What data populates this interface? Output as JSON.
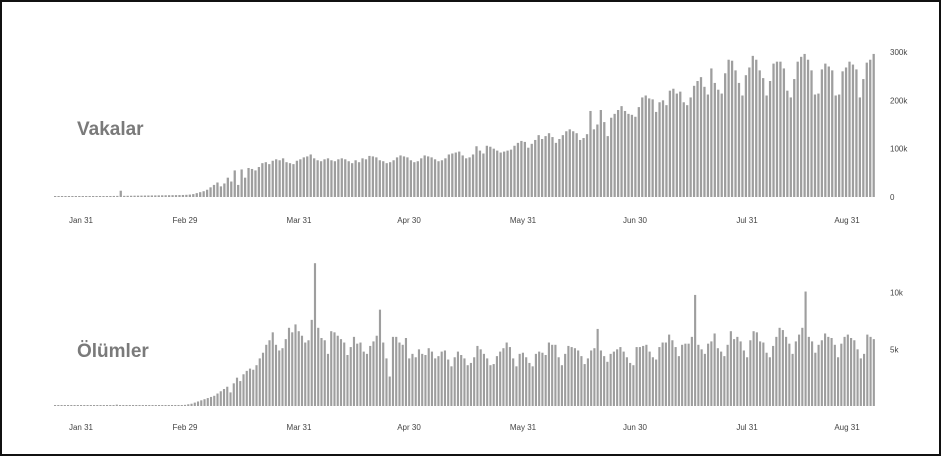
{
  "colors": {
    "bar": "#9e9e9e",
    "text": "#444444",
    "title": "#7a7a7a",
    "frame": "#111111"
  },
  "chart_data": [
    {
      "type": "bar",
      "title": "Vakalar",
      "xlabel": "",
      "ylabel": "",
      "x_range": [
        "Jan 31",
        "Sep 6"
      ],
      "x_ticks": [
        "Jan 31",
        "Feb 29",
        "Mar 31",
        "Apr 30",
        "May 31",
        "Jun 30",
        "Jul 31",
        "Aug 31"
      ],
      "y_ticks": [
        "0",
        "100k",
        "200k",
        "300k"
      ],
      "y_tick_values": [
        0,
        100000,
        200000,
        300000
      ],
      "ylim": [
        0,
        300000
      ],
      "grid": false,
      "daily_values": [
        500,
        600,
        700,
        800,
        900,
        1000,
        1100,
        1200,
        1300,
        1400,
        1500,
        1600,
        1700,
        1800,
        1900,
        2000,
        2100,
        2200,
        2300,
        13000,
        2400,
        2500,
        2600,
        2700,
        2800,
        2900,
        3000,
        3100,
        3200,
        3300,
        3400,
        3500,
        3600,
        3700,
        3800,
        3900,
        4000,
        4200,
        4500,
        5000,
        6000,
        8000,
        10000,
        12000,
        15000,
        20000,
        25000,
        30000,
        22000,
        28000,
        40000,
        32000,
        55000,
        25000,
        57000,
        40000,
        60000,
        58000,
        55000,
        62000,
        70000,
        72000,
        68000,
        75000,
        78000,
        76000,
        80000,
        72000,
        70000,
        68000,
        75000,
        78000,
        82000,
        84000,
        88000,
        80000,
        76000,
        74000,
        78000,
        80000,
        76000,
        74000,
        78000,
        80000,
        78000,
        74000,
        70000,
        76000,
        72000,
        80000,
        78000,
        85000,
        84000,
        82000,
        76000,
        74000,
        70000,
        72000,
        76000,
        82000,
        86000,
        84000,
        82000,
        76000,
        72000,
        74000,
        80000,
        86000,
        84000,
        82000,
        78000,
        74000,
        76000,
        80000,
        88000,
        90000,
        92000,
        94000,
        86000,
        80000,
        82000,
        88000,
        105000,
        96000,
        90000,
        106000,
        104000,
        100000,
        96000,
        92000,
        94000,
        96000,
        98000,
        106000,
        112000,
        116000,
        114000,
        102000,
        110000,
        118000,
        128000,
        120000,
        126000,
        132000,
        124000,
        112000,
        120000,
        128000,
        136000,
        140000,
        136000,
        132000,
        118000,
        122000,
        130000,
        178000,
        140000,
        150000,
        180000,
        155000,
        126000,
        164000,
        172000,
        180000,
        188000,
        178000,
        172000,
        170000,
        166000,
        186000,
        206000,
        210000,
        204000,
        202000,
        176000,
        196000,
        200000,
        190000,
        220000,
        224000,
        214000,
        218000,
        196000,
        190000,
        206000,
        230000,
        240000,
        248000,
        228000,
        212000,
        266000,
        236000,
        222000,
        214000,
        256000,
        284000,
        282000,
        262000,
        236000,
        210000,
        252000,
        268000,
        292000,
        284000,
        262000,
        246000,
        210000,
        240000,
        276000,
        280000,
        280000,
        266000,
        220000,
        206000,
        244000,
        280000,
        290000,
        296000,
        284000,
        262000,
        212000,
        214000,
        264000,
        276000,
        270000,
        262000,
        210000,
        212000,
        260000,
        268000,
        280000,
        274000,
        264000,
        206000,
        244000,
        278000,
        284000,
        296000
      ]
    },
    {
      "type": "bar",
      "title": "Ölümler",
      "xlabel": "",
      "ylabel": "",
      "x_range": [
        "Jan 31",
        "Sep 6"
      ],
      "x_ticks": [
        "Jan 31",
        "Feb 29",
        "Mar 31",
        "Apr 30",
        "May 31",
        "Jun 30",
        "Jul 31",
        "Aug 31"
      ],
      "y_ticks": [
        "5k",
        "10k"
      ],
      "y_tick_values": [
        5000,
        10000
      ],
      "ylim": [
        0,
        12000
      ],
      "grid": false,
      "daily_values": [
        40,
        40,
        40,
        40,
        40,
        40,
        40,
        40,
        40,
        40,
        40,
        40,
        40,
        40,
        40,
        40,
        40,
        40,
        40,
        120,
        40,
        40,
        40,
        40,
        40,
        40,
        40,
        40,
        40,
        40,
        40,
        40,
        40,
        40,
        40,
        40,
        40,
        50,
        60,
        80,
        100,
        150,
        200,
        300,
        400,
        500,
        600,
        700,
        800,
        900,
        1100,
        1300,
        1500,
        1700,
        1200,
        2000,
        2500,
        2200,
        2800,
        3100,
        3300,
        3200,
        3600,
        4200,
        4700,
        5400,
        5800,
        6500,
        5400,
        4900,
        5100,
        5900,
        6900,
        6500,
        7200,
        6600,
        6200,
        5600,
        5800,
        7600,
        12600,
        6900,
        6000,
        5800,
        4600,
        6600,
        6500,
        6200,
        5900,
        5600,
        4500,
        5200,
        6100,
        5500,
        5600,
        4800,
        4600,
        5300,
        5700,
        6200,
        8500,
        5600,
        4200,
        2600,
        6100,
        6100,
        5600,
        5400,
        6000,
        4200,
        4600,
        4300,
        5000,
        4600,
        4500,
        5100,
        4800,
        4200,
        4400,
        4800,
        4900,
        4100,
        3500,
        4300,
        4800,
        4500,
        4200,
        3600,
        3800,
        4300,
        5300,
        5000,
        4600,
        4200,
        3600,
        3700,
        4400,
        4800,
        5100,
        5600,
        5200,
        4200,
        3500,
        4600,
        4700,
        4300,
        3800,
        3500,
        4600,
        4800,
        4700,
        4500,
        5600,
        5400,
        5400,
        4300,
        3600,
        4600,
        5300,
        5200,
        5100,
        4900,
        4400,
        3700,
        4200,
        4900,
        5100,
        6800,
        4900,
        4400,
        3900,
        4600,
        4800,
        5000,
        5200,
        4800,
        4300,
        3800,
        3600,
        5200,
        5200,
        5300,
        5400,
        4800,
        4300,
        4100,
        5200,
        5600,
        5600,
        6300,
        5800,
        5200,
        4400,
        5400,
        5500,
        5500,
        6100,
        9800,
        5400,
        5000,
        4600,
        5500,
        5700,
        6400,
        5100,
        4800,
        4400,
        5400,
        6600,
        5900,
        6100,
        5700,
        4900,
        4300,
        5800,
        6600,
        6500,
        5700,
        5600,
        4700,
        4300,
        5300,
        6100,
        6900,
        6700,
        6100,
        5500,
        4600,
        5700,
        6300,
        6900,
        10100,
        6100,
        5700,
        4700,
        5400,
        5800,
        6400,
        6100,
        6000,
        5400,
        4300,
        5500,
        6100,
        6300,
        6000,
        5800,
        5000,
        4200,
        4600,
        6300,
        6100,
        5900
      ]
    }
  ]
}
